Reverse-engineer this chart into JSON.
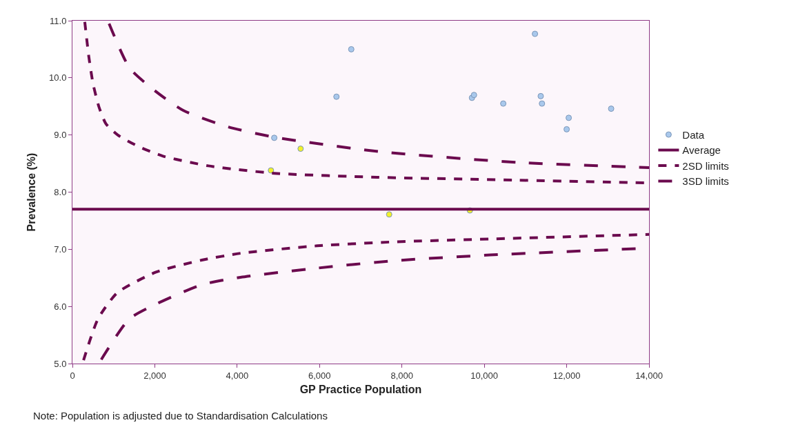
{
  "chart_data": {
    "type": "line",
    "xlabel": "GP Practice Population",
    "ylabel": "Prevalence (%)",
    "xlim": [
      0,
      14000
    ],
    "xticks": [
      {
        "value": 0,
        "label": "0"
      },
      {
        "value": 2000,
        "label": "2,000"
      },
      {
        "value": 4000,
        "label": "4,000"
      },
      {
        "value": 6000,
        "label": "6,000"
      },
      {
        "value": 8000,
        "label": "8,000"
      },
      {
        "value": 10000,
        "label": "10,000"
      },
      {
        "value": 12000,
        "label": "12,000"
      },
      {
        "value": 14000,
        "label": "14,000"
      }
    ],
    "ylim": [
      5.0,
      11.0
    ],
    "yticks": [
      {
        "value": 5,
        "label": "5.0"
      },
      {
        "value": 6,
        "label": "6.0"
      },
      {
        "value": 7,
        "label": "7.0"
      },
      {
        "value": 8,
        "label": "8.0"
      },
      {
        "value": 9,
        "label": "9.0"
      },
      {
        "value": 10,
        "label": "10.0"
      },
      {
        "value": 11,
        "label": "11.0"
      }
    ],
    "grid": false,
    "legend": "right",
    "series": [
      {
        "name": "Data",
        "type": "scatter",
        "marker": "circle",
        "x": [
          4900,
          6410,
          6770,
          9700,
          9750,
          10460,
          11230,
          11370,
          11400,
          12050,
          12000,
          13080,
          4820,
          5540,
          7690,
          9650
        ],
        "values": [
          8.95,
          9.67,
          10.5,
          9.65,
          9.7,
          9.55,
          10.77,
          9.68,
          9.55,
          9.3,
          9.1,
          9.46,
          8.38,
          8.76,
          7.61,
          7.68
        ],
        "colors": [
          "#a9c8ec",
          "#a9c8ec",
          "#a9c8ec",
          "#a9c8ec",
          "#a9c8ec",
          "#a9c8ec",
          "#a9c8ec",
          "#a9c8ec",
          "#a9c8ec",
          "#a9c8ec",
          "#a9c8ec",
          "#a9c8ec",
          "#f2f22a",
          "#f2f22a",
          "#f2f22a",
          "#f2f22a"
        ]
      },
      {
        "name": "Average",
        "line_style": "solid",
        "color": "#6b0a4e",
        "x": [
          0,
          14000
        ],
        "values": [
          7.7,
          7.7
        ]
      },
      {
        "name": "2SD limits",
        "line_style": "dotted",
        "color": "#6b0a4e",
        "x": [
          300,
          400,
          500,
          640,
          810,
          1100,
          1600,
          2200,
          3300,
          4900,
          7400,
          10800,
          14000
        ],
        "values": [
          10.98,
          10.36,
          9.9,
          9.5,
          9.2,
          9.0,
          8.8,
          8.63,
          8.46,
          8.33,
          8.26,
          8.21,
          8.16
        ]
      },
      {
        "name": null,
        "line_style": "dotted",
        "color": "#6b0a4e",
        "x": [
          270,
          620,
          1090,
          2030,
          3140,
          4080,
          5940,
          7810,
          10140,
          14000
        ],
        "values": [
          5.06,
          5.78,
          6.24,
          6.6,
          6.81,
          6.93,
          7.06,
          7.13,
          7.18,
          7.26
        ]
      },
      {
        "name": "3SD limits",
        "line_style": "dashed",
        "color": "#6b0a4e",
        "x": [
          890,
          1390,
          2010,
          2690,
          3790,
          4920,
          7440,
          10790,
          14000
        ],
        "values": [
          10.95,
          10.17,
          9.77,
          9.43,
          9.14,
          8.96,
          8.71,
          8.52,
          8.43
        ]
      },
      {
        "name": null,
        "line_style": "dashed",
        "color": "#6b0a4e",
        "x": [
          700,
          1380,
          2030,
          3140,
          4080,
          5940,
          7810,
          10140,
          14000
        ],
        "values": [
          5.07,
          5.78,
          6.04,
          6.38,
          6.51,
          6.67,
          6.8,
          6.9,
          7.02
        ]
      }
    ],
    "annotations": [
      "Note: Population is adjusted due to Standardisation Calculations"
    ]
  }
}
